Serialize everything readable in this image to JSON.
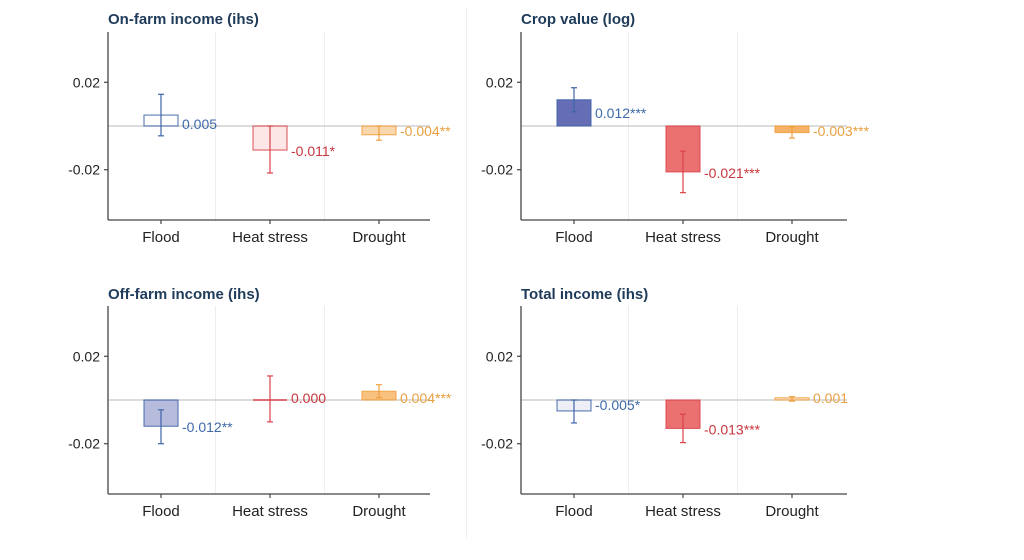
{
  "chart_data": [
    {
      "type": "bar",
      "title": "On-farm income (ihs)",
      "categories": [
        "Flood",
        "Heat stress",
        "Drought"
      ],
      "values": [
        0.005,
        -0.011,
        -0.004
      ],
      "labels": [
        "0.005",
        "-0.011*",
        "-0.004**"
      ],
      "ci_low": [
        -0.0045,
        -0.0215,
        -0.0065
      ],
      "ci_high": [
        0.0145,
        0.0,
        0.0
      ],
      "fill_opacity": [
        0.0,
        0.15,
        0.45
      ],
      "yticks": [
        0.02,
        -0.02
      ],
      "ytick_labels": [
        "0.02",
        "-0.02"
      ],
      "ylim": [
        -0.043,
        0.043
      ],
      "xlabel": "",
      "ylabel": "",
      "grid": "vertical-minor"
    },
    {
      "type": "bar",
      "title": "Crop value (log)",
      "categories": [
        "Flood",
        "Heat stress",
        "Drought"
      ],
      "values": [
        0.012,
        -0.021,
        -0.003
      ],
      "labels": [
        "0.012***",
        "-0.021***",
        "-0.003***"
      ],
      "ci_low": [
        0.0065,
        -0.0305,
        -0.0055
      ],
      "ci_high": [
        0.0175,
        -0.0115,
        -0.0005
      ],
      "fill_opacity": [
        0.85,
        0.85,
        0.85
      ],
      "yticks": [
        0.02,
        -0.02
      ],
      "ytick_labels": [
        "0.02",
        "-0.02"
      ],
      "ylim": [
        -0.043,
        0.043
      ],
      "xlabel": "",
      "ylabel": "",
      "grid": "vertical-minor"
    },
    {
      "type": "bar",
      "title": "Off-farm income (ihs)",
      "categories": [
        "Flood",
        "Heat stress",
        "Drought"
      ],
      "values": [
        -0.012,
        0.0,
        0.004
      ],
      "labels": [
        "-0.012**",
        "0.000",
        "0.004***"
      ],
      "ci_low": [
        -0.02,
        -0.01,
        0.001
      ],
      "ci_high": [
        -0.0045,
        0.011,
        0.007
      ],
      "fill_opacity": [
        0.4,
        0.0,
        0.7
      ],
      "yticks": [
        0.02,
        -0.02
      ],
      "ytick_labels": [
        "0.02",
        "-0.02"
      ],
      "ylim": [
        -0.043,
        0.043
      ],
      "xlabel": "",
      "ylabel": "",
      "grid": "vertical-minor"
    },
    {
      "type": "bar",
      "title": "Total income (ihs)",
      "categories": [
        "Flood",
        "Heat stress",
        "Drought"
      ],
      "values": [
        -0.005,
        -0.013,
        0.001
      ],
      "labels": [
        "-0.005*",
        "-0.013***",
        "0.001"
      ],
      "ci_low": [
        -0.0105,
        -0.0195,
        -0.0005
      ],
      "ci_high": [
        0.0,
        -0.0065,
        0.0015
      ],
      "fill_opacity": [
        0.1,
        0.85,
        0.3
      ],
      "yticks": [
        0.02,
        -0.02
      ],
      "ytick_labels": [
        "0.02",
        "-0.02"
      ],
      "ylim": [
        -0.043,
        0.043
      ],
      "xlabel": "",
      "ylabel": "",
      "grid": "vertical-minor"
    }
  ],
  "colors": {
    "title": "#1f3b5a",
    "series": [
      "#3e64a8",
      "#d9434b",
      "#f0a040"
    ],
    "fills": [
      "#4a55a8",
      "#e85858",
      "#f5a64a"
    ],
    "label_colors": [
      "#3e6aa8",
      "#c8363e",
      "#e8a040"
    ],
    "axis": "#444444",
    "zero_line": "#c8c8c8",
    "grid": "#eeeeee"
  }
}
